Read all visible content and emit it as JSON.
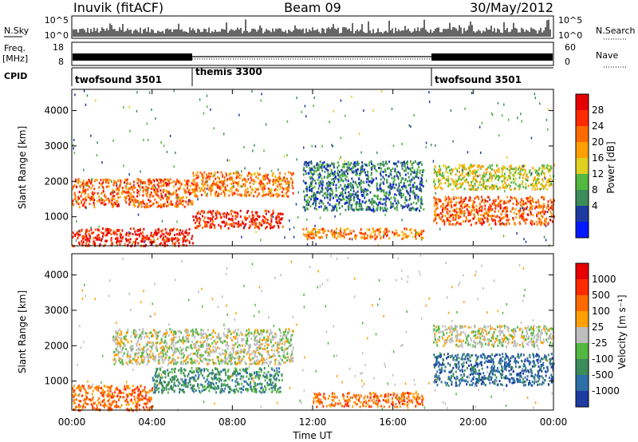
{
  "header": {
    "station": "Inuvik (fitACF)",
    "beam": "Beam 09",
    "date": "30/May/2012"
  },
  "top_panel": {
    "left_label": "N.Sky",
    "right_label": "N.Search",
    "left_ticks": [
      "10^5",
      "10^0"
    ],
    "right_ticks": [
      "10^5",
      "10^0"
    ]
  },
  "freq_panel": {
    "left_label_1": "Freq.",
    "left_label_2": "[MHz]",
    "left_ticks": [
      "18",
      "8"
    ],
    "right_label": "Nave",
    "right_ticks": [
      "60",
      "0"
    ]
  },
  "cpid": {
    "label": "CPID",
    "segments": [
      {
        "name": "twofsound 3501",
        "start_hour": 0,
        "end_hour": 6
      },
      {
        "name": "themis 3300",
        "start_hour": 6,
        "end_hour": 18
      },
      {
        "name": "twofsound 3501",
        "start_hour": 18,
        "end_hour": 24
      }
    ]
  },
  "x_axis": {
    "label": "Time UT",
    "tick_labels": [
      "00:00",
      "04:00",
      "08:00",
      "12:00",
      "16:00",
      "20:00",
      "00:00"
    ]
  },
  "power_panel": {
    "y_label": "Slant Range [km]",
    "y_ticks": [
      "4000",
      "3000",
      "2000",
      "1000"
    ],
    "colorbar_label": "Power [dB]",
    "colorbar_ticks": [
      "28",
      "24",
      "20",
      "16",
      "12",
      "8",
      "4"
    ],
    "colors": [
      "#0019ff",
      "#1e3ca0",
      "#3c8c5a",
      "#52b840",
      "#e0d020",
      "#ffa000",
      "#ff6a00",
      "#ff2a00",
      "#e60000"
    ]
  },
  "velocity_panel": {
    "y_label": "Slant Range [km]",
    "y_ticks": [
      "4000",
      "3000",
      "2000",
      "1000"
    ],
    "colorbar_label": "Velocity [m s⁻¹]",
    "colorbar_ticks": [
      "1000",
      "500",
      "100",
      "25",
      "-25",
      "-100",
      "-500",
      "-1000"
    ],
    "colors": [
      "#1e3ca0",
      "#2e6fa8",
      "#3c8c5a",
      "#52b840",
      "#bebebe",
      "#ffa000",
      "#ff6a00",
      "#ff2a00",
      "#e60000"
    ]
  },
  "chart_data": {
    "type": "heatmap",
    "xlabel": "Time UT",
    "ylabel": "Slant Range [km]",
    "xlim_hours": [
      0,
      24
    ],
    "ylim_km": [
      180,
      4600
    ],
    "scatter_regions": {
      "power": [
        {
          "t0": 0.0,
          "t1": 6.0,
          "r0": 200,
          "r1": 700,
          "value_db": 26
        },
        {
          "t0": 0.0,
          "t1": 6.0,
          "r0": 1300,
          "r1": 2100,
          "value_db": 22
        },
        {
          "t0": 6.0,
          "t1": 10.5,
          "r0": 700,
          "r1": 1200,
          "value_db": 25
        },
        {
          "t0": 6.0,
          "t1": 11.0,
          "r0": 1600,
          "r1": 2300,
          "value_db": 20
        },
        {
          "t0": 11.5,
          "t1": 17.5,
          "r0": 400,
          "r1": 700,
          "value_db": 20
        },
        {
          "t0": 11.5,
          "t1": 17.5,
          "r0": 1200,
          "r1": 2600,
          "value_db": 6
        },
        {
          "t0": 18.0,
          "t1": 24.0,
          "r0": 800,
          "r1": 1600,
          "value_db": 22
        },
        {
          "t0": 18.0,
          "t1": 24.0,
          "r0": 1800,
          "r1": 2500,
          "value_db": 14
        }
      ],
      "velocity": [
        {
          "t0": 0.0,
          "t1": 4.0,
          "r0": 200,
          "r1": 900,
          "value_ms": -200
        },
        {
          "t0": 2.0,
          "t1": 11.0,
          "r0": 1500,
          "r1": 2500,
          "value_ms": 0
        },
        {
          "t0": 4.0,
          "t1": 10.5,
          "r0": 700,
          "r1": 1400,
          "value_ms": 300
        },
        {
          "t0": 12.0,
          "t1": 17.5,
          "r0": 300,
          "r1": 700,
          "value_ms": -150
        },
        {
          "t0": 18.0,
          "t1": 24.0,
          "r0": 900,
          "r1": 1800,
          "value_ms": 600
        },
        {
          "t0": 18.0,
          "t1": 24.0,
          "r0": 2000,
          "r1": 2600,
          "value_ms": 0
        }
      ]
    }
  }
}
